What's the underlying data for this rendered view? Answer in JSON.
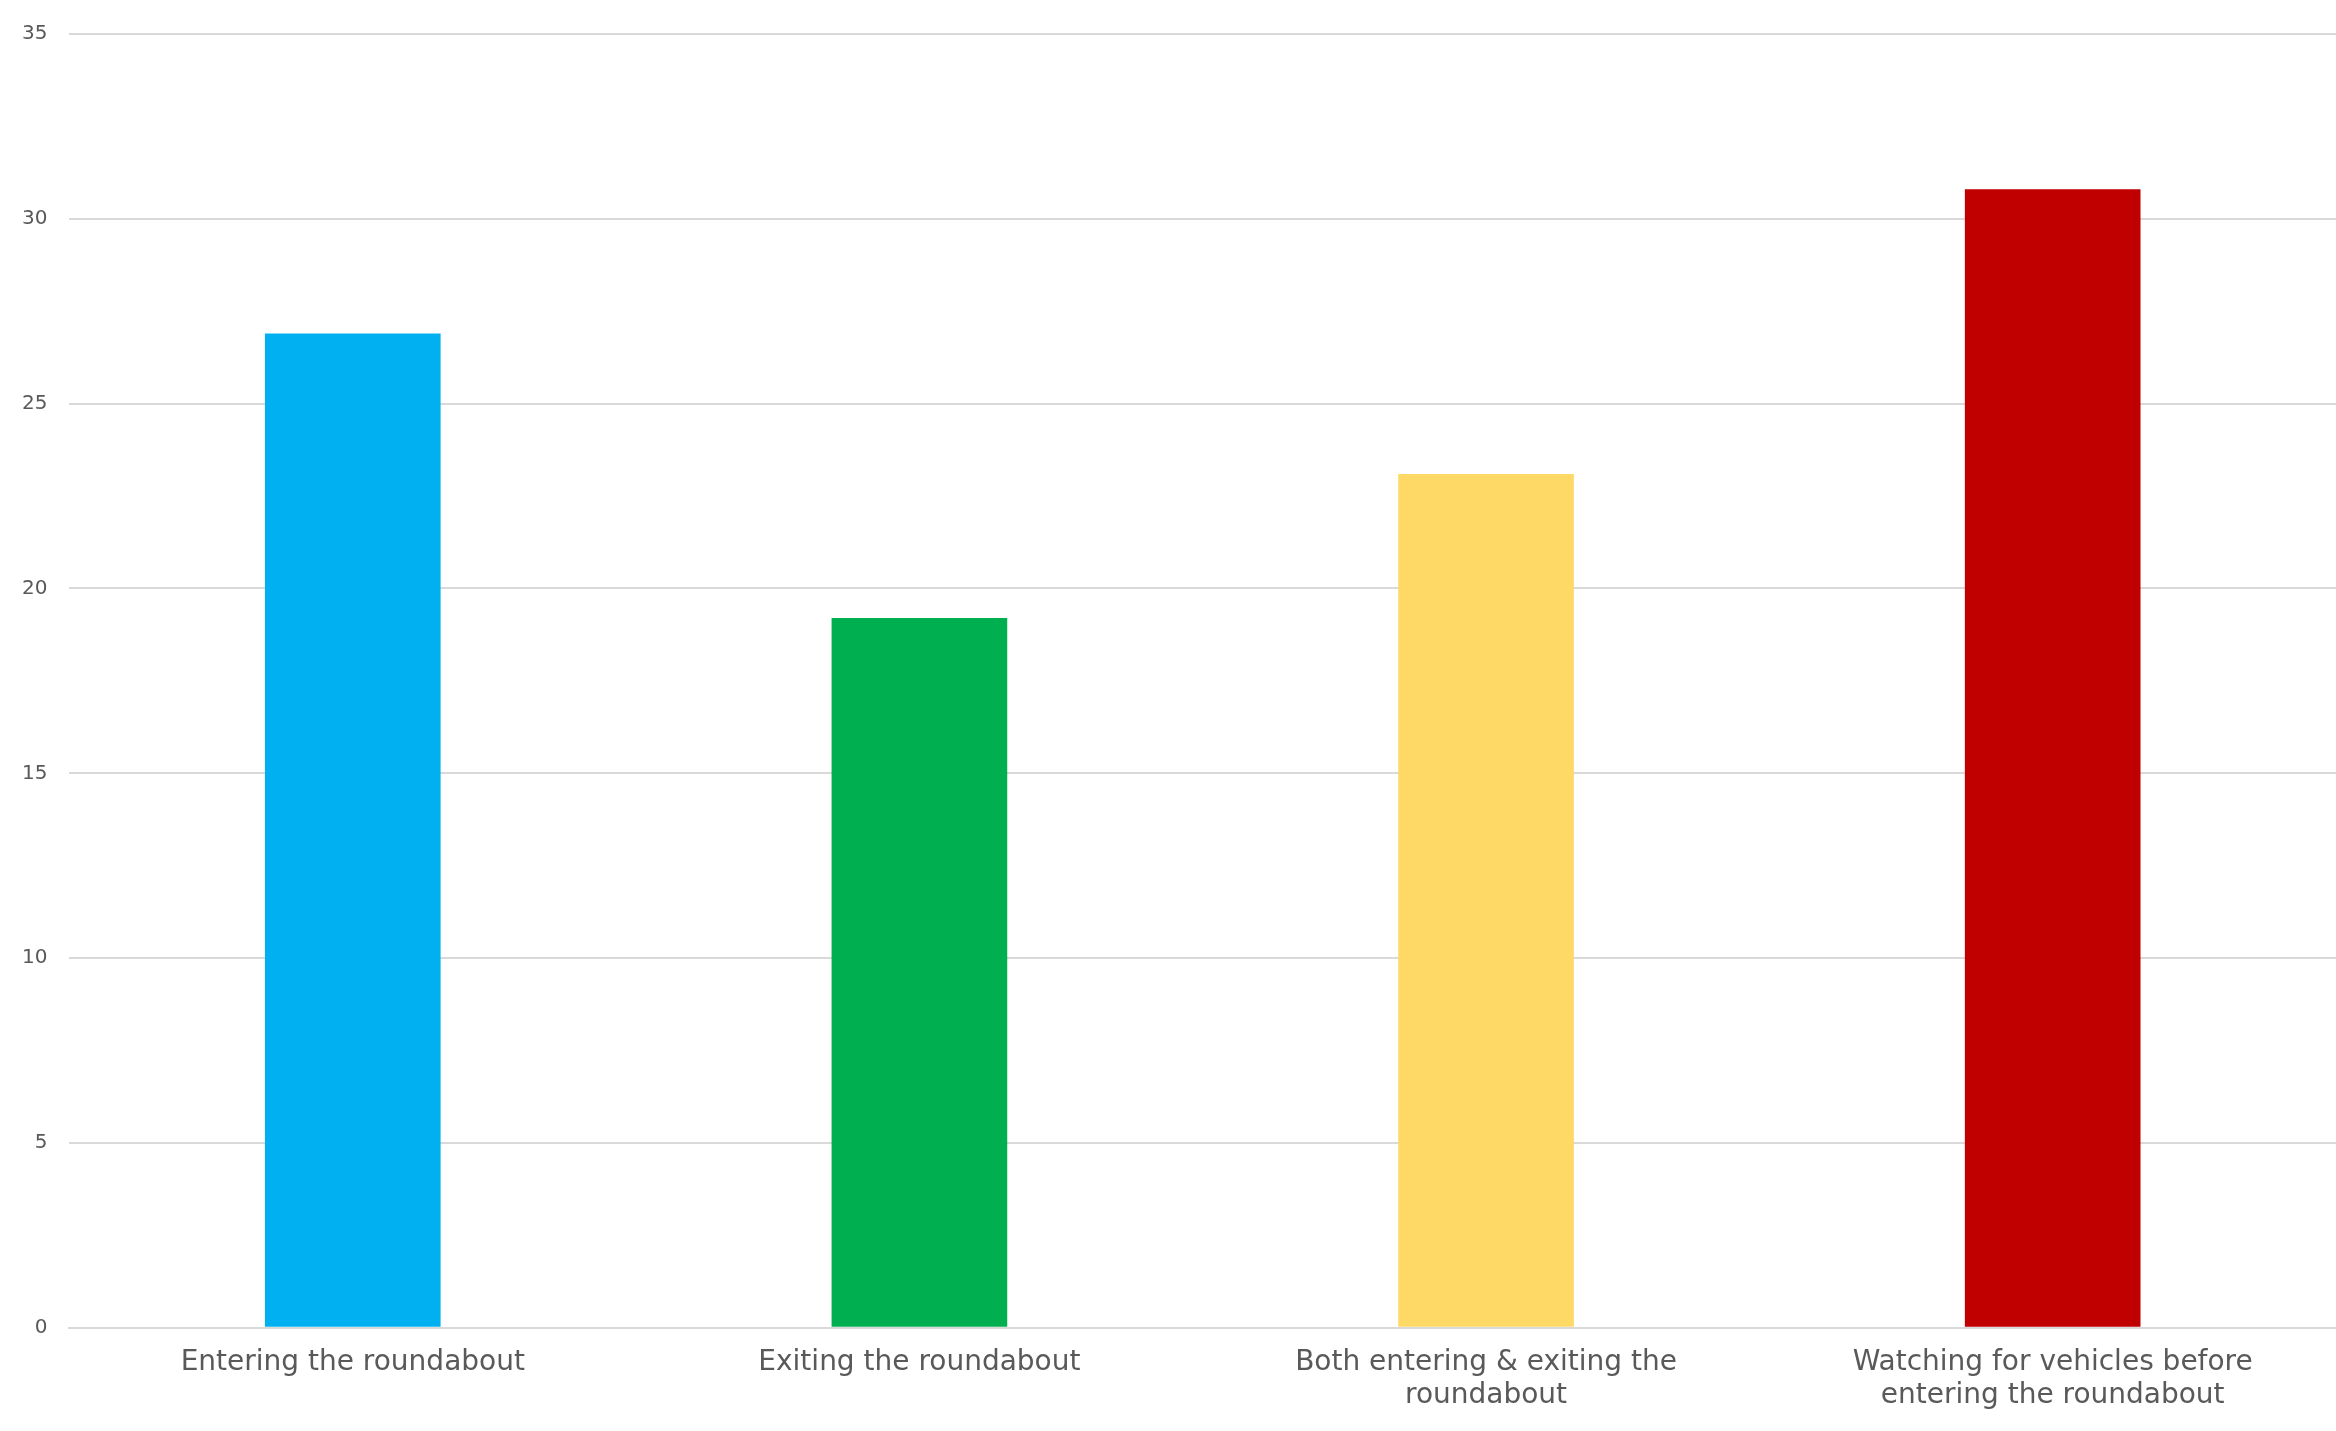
{
  "chart_data": {
    "type": "bar",
    "categories": [
      "Entering the roundabout",
      "Exiting the roundabout",
      "Both entering & exiting the roundabout",
      "Watching for vehicles before entering the roundabout"
    ],
    "values": [
      26.9,
      19.2,
      23.1,
      30.8
    ],
    "colors": [
      "#00b0f0",
      "#00b050",
      "#ffd966",
      "#c00000"
    ],
    "ylim": [
      0,
      35
    ],
    "yticks": [
      0,
      5,
      10,
      15,
      20,
      25,
      30,
      35
    ],
    "grid": "y",
    "legend": false
  }
}
